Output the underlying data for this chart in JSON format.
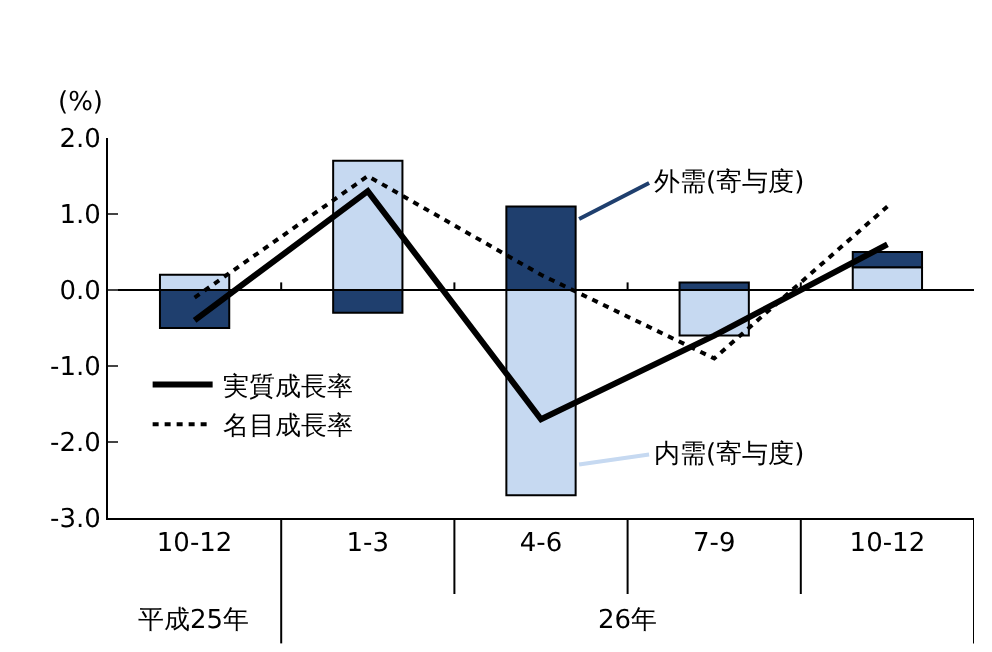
{
  "chart_data": {
    "type": "bar",
    "stacked": true,
    "ylabel": "(%)",
    "categories": [
      "10-12",
      "1-3",
      "4-6",
      "7-9",
      "10-12"
    ],
    "series": [
      {
        "name": "内需(寄与度)",
        "color": "#c6d9f1",
        "values": [
          0.2,
          1.7,
          -2.7,
          -0.6,
          0.3
        ]
      },
      {
        "name": "外需(寄与度)",
        "color": "#1f3f6e",
        "values": [
          -0.5,
          -0.3,
          1.1,
          0.1,
          0.2
        ]
      },
      {
        "name": "実質成長率",
        "type": "line",
        "color": "#000000",
        "line_style": "solid",
        "values": [
          -0.4,
          1.3,
          -1.7,
          -0.6,
          0.6
        ]
      },
      {
        "name": "名目成長率",
        "type": "line",
        "color": "#000000",
        "line_style": "dotted",
        "values": [
          -0.1,
          1.5,
          0.2,
          -0.9,
          1.1
        ]
      }
    ],
    "ylim": [
      -3.0,
      2.0
    ],
    "yticks": [
      {
        "value": -3,
        "label": "-3.0"
      },
      {
        "value": -2,
        "label": "-2.0"
      },
      {
        "value": -1,
        "label": "-1.0"
      },
      {
        "value": 0,
        "label": "0.0"
      },
      {
        "value": 1,
        "label": "1.0"
      },
      {
        "value": 2,
        "label": "2.0"
      }
    ],
    "annotations": [
      "平成25年",
      "26年"
    ],
    "legend": "left",
    "marker": "none"
  }
}
